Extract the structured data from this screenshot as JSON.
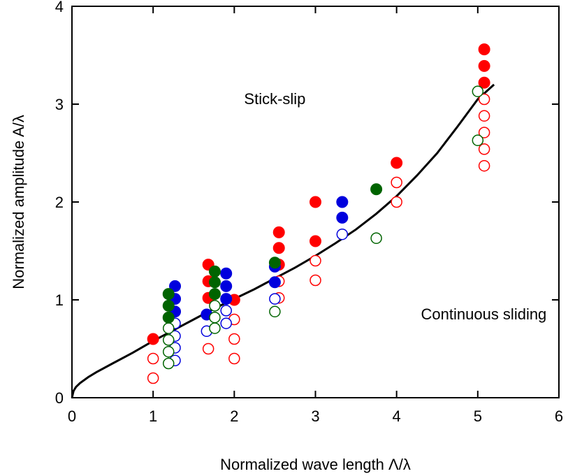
{
  "chart_data": {
    "type": "scatter",
    "title": "",
    "xlabel": "Normalized wave length Λ/λ",
    "ylabel": "Normalized amplitude A/λ",
    "xlim": [
      0,
      6
    ],
    "ylim": [
      0,
      4
    ],
    "xticks": [
      0,
      1,
      2,
      3,
      4,
      5,
      6
    ],
    "yticks": [
      0,
      1,
      2,
      3,
      4
    ],
    "grid": false,
    "legend": "none",
    "annotations": [
      {
        "text": "Stick-slip",
        "x": 2.5,
        "y": 3.0
      },
      {
        "text": "Continuous sliding",
        "x": 4.3,
        "y": 0.8
      }
    ],
    "series": [
      {
        "color": "#ff0000",
        "filled": [
          [
            1.0,
            0.6
          ],
          [
            1.68,
            1.36
          ],
          [
            1.68,
            1.19
          ],
          [
            1.68,
            1.02
          ],
          [
            2.0,
            1.0
          ],
          [
            2.55,
            1.69
          ],
          [
            2.55,
            1.53
          ],
          [
            2.55,
            1.36
          ],
          [
            3.0,
            2.0
          ],
          [
            3.0,
            1.6
          ],
          [
            4.0,
            2.4
          ],
          [
            5.08,
            3.56
          ],
          [
            5.08,
            3.39
          ],
          [
            5.08,
            3.22
          ]
        ],
        "hollow": [
          [
            1.0,
            0.4
          ],
          [
            1.0,
            0.2
          ],
          [
            1.68,
            0.5
          ],
          [
            2.0,
            0.8
          ],
          [
            2.0,
            0.6
          ],
          [
            2.0,
            0.4
          ],
          [
            2.55,
            1.19
          ],
          [
            2.55,
            1.02
          ],
          [
            3.0,
            1.4
          ],
          [
            3.0,
            1.2
          ],
          [
            4.0,
            2.2
          ],
          [
            4.0,
            2.0
          ],
          [
            5.08,
            3.05
          ],
          [
            5.08,
            2.88
          ],
          [
            5.08,
            2.71
          ],
          [
            5.08,
            2.54
          ],
          [
            5.08,
            2.37
          ]
        ]
      },
      {
        "color": "#0000dd",
        "filled": [
          [
            1.27,
            1.14
          ],
          [
            1.27,
            1.01
          ],
          [
            1.27,
            0.88
          ],
          [
            1.66,
            0.85
          ],
          [
            1.9,
            1.27
          ],
          [
            1.9,
            1.14
          ],
          [
            1.9,
            1.01
          ],
          [
            2.5,
            1.34
          ],
          [
            2.5,
            1.18
          ],
          [
            3.33,
            2.0
          ],
          [
            3.33,
            1.84
          ]
        ],
        "hollow": [
          [
            1.27,
            0.76
          ],
          [
            1.27,
            0.63
          ],
          [
            1.27,
            0.51
          ],
          [
            1.27,
            0.38
          ],
          [
            1.66,
            0.68
          ],
          [
            1.9,
            0.89
          ],
          [
            1.9,
            0.76
          ],
          [
            2.5,
            1.01
          ],
          [
            3.33,
            1.67
          ]
        ]
      },
      {
        "color": "#006400",
        "filled": [
          [
            1.19,
            1.06
          ],
          [
            1.19,
            0.94
          ],
          [
            1.19,
            0.82
          ],
          [
            1.76,
            1.29
          ],
          [
            1.76,
            1.18
          ],
          [
            1.76,
            1.06
          ],
          [
            2.5,
            1.38
          ],
          [
            3.75,
            2.13
          ]
        ],
        "hollow": [
          [
            1.19,
            0.71
          ],
          [
            1.19,
            0.59
          ],
          [
            1.19,
            0.47
          ],
          [
            1.19,
            0.35
          ],
          [
            1.76,
            0.94
          ],
          [
            1.76,
            0.82
          ],
          [
            1.76,
            0.71
          ],
          [
            2.5,
            0.88
          ],
          [
            3.75,
            1.63
          ],
          [
            5.0,
            3.13
          ],
          [
            5.0,
            2.63
          ]
        ]
      }
    ],
    "boundary_curve": {
      "color": "#000000",
      "points": [
        [
          0.0,
          0.0
        ],
        [
          0.02,
          0.07
        ],
        [
          0.05,
          0.11
        ],
        [
          0.1,
          0.15
        ],
        [
          0.2,
          0.21
        ],
        [
          0.3,
          0.26
        ],
        [
          0.5,
          0.35
        ],
        [
          0.75,
          0.46
        ],
        [
          1.0,
          0.58
        ],
        [
          1.25,
          0.69
        ],
        [
          1.5,
          0.8
        ],
        [
          1.75,
          0.91
        ],
        [
          2.0,
          1.01
        ],
        [
          2.25,
          1.11
        ],
        [
          2.5,
          1.22
        ],
        [
          2.75,
          1.33
        ],
        [
          3.0,
          1.45
        ],
        [
          3.25,
          1.58
        ],
        [
          3.5,
          1.72
        ],
        [
          3.75,
          1.88
        ],
        [
          4.0,
          2.06
        ],
        [
          4.25,
          2.27
        ],
        [
          4.5,
          2.5
        ],
        [
          4.75,
          2.77
        ],
        [
          5.0,
          3.05
        ],
        [
          5.2,
          3.2
        ]
      ]
    }
  }
}
